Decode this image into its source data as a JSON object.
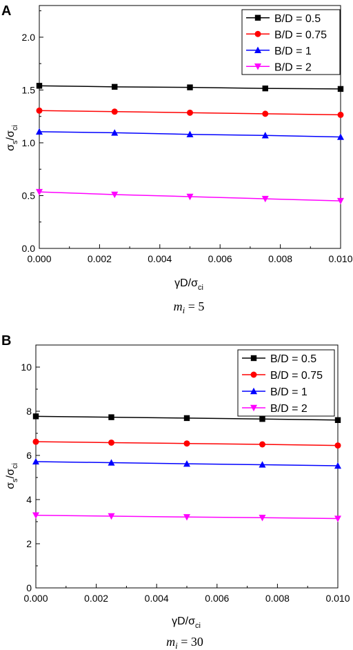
{
  "panels": [
    {
      "panel_label": "A",
      "caption_main": "m",
      "caption_sub": "i",
      "caption_value": " = 5",
      "xlabel": {
        "main": "γD/σ",
        "sub": "ci"
      },
      "ylabel": {
        "num": "σ",
        "num_sub": "s",
        "sep": "/σ",
        "den_sub": "ci"
      }
    },
    {
      "panel_label": "B",
      "caption_main": "m",
      "caption_sub": "i",
      "caption_value": " = 30",
      "xlabel": {
        "main": "γD/σ",
        "sub": "ci"
      },
      "ylabel": {
        "num": "σ",
        "num_sub": "s",
        "sep": "/σ",
        "den_sub": "ci"
      }
    }
  ],
  "chart_data": [
    {
      "type": "line",
      "x": [
        0.0,
        0.0025,
        0.005,
        0.0075,
        0.01
      ],
      "xlim": [
        0.0,
        0.01
      ],
      "ylim": [
        0.0,
        2.3
      ],
      "xticks": [
        "0.000",
        "0.002",
        "0.004",
        "0.006",
        "0.008",
        "0.010"
      ],
      "xtick_values": [
        0.0,
        0.002,
        0.004,
        0.006,
        0.008,
        0.01
      ],
      "yticks": [
        "0.0",
        "0.5",
        "1.0",
        "1.5",
        "2.0"
      ],
      "ytick_values": [
        0.0,
        0.5,
        1.0,
        1.5,
        2.0
      ],
      "legend_position": "top-right",
      "series": [
        {
          "name": "B/D = 0.5",
          "color": "#000000",
          "marker": "square",
          "values": [
            1.54,
            1.53,
            1.525,
            1.515,
            1.51
          ]
        },
        {
          "name": "B/D = 0.75",
          "color": "#ff0000",
          "marker": "circle",
          "values": [
            1.305,
            1.295,
            1.285,
            1.275,
            1.265
          ]
        },
        {
          "name": "B/D = 1",
          "color": "#0000ff",
          "marker": "triangle-up",
          "values": [
            1.105,
            1.095,
            1.08,
            1.07,
            1.055
          ]
        },
        {
          "name": "B/D = 2",
          "color": "#ff00ff",
          "marker": "triangle-down",
          "values": [
            0.535,
            0.51,
            0.49,
            0.47,
            0.45
          ]
        }
      ]
    },
    {
      "type": "line",
      "x": [
        0.0,
        0.0025,
        0.005,
        0.0075,
        0.01
      ],
      "xlim": [
        0.0,
        0.01
      ],
      "ylim": [
        0.0,
        11.0
      ],
      "xticks": [
        "0.000",
        "0.002",
        "0.004",
        "0.006",
        "0.008",
        "0.010"
      ],
      "xtick_values": [
        0.0,
        0.002,
        0.004,
        0.006,
        0.008,
        0.01
      ],
      "yticks": [
        "0",
        "2",
        "4",
        "6",
        "8",
        "10"
      ],
      "ytick_values": [
        0,
        2,
        4,
        6,
        8,
        10
      ],
      "legend_position": "top-right",
      "series": [
        {
          "name": "B/D = 0.5",
          "color": "#000000",
          "marker": "square",
          "values": [
            7.77,
            7.73,
            7.69,
            7.65,
            7.6
          ]
        },
        {
          "name": "B/D = 0.75",
          "color": "#ff0000",
          "marker": "circle",
          "values": [
            6.62,
            6.58,
            6.54,
            6.5,
            6.45
          ]
        },
        {
          "name": "B/D = 1",
          "color": "#0000ff",
          "marker": "triangle-up",
          "values": [
            5.72,
            5.67,
            5.62,
            5.58,
            5.53
          ]
        },
        {
          "name": "B/D = 2",
          "color": "#ff00ff",
          "marker": "triangle-down",
          "values": [
            3.29,
            3.25,
            3.21,
            3.18,
            3.14
          ]
        }
      ]
    }
  ]
}
